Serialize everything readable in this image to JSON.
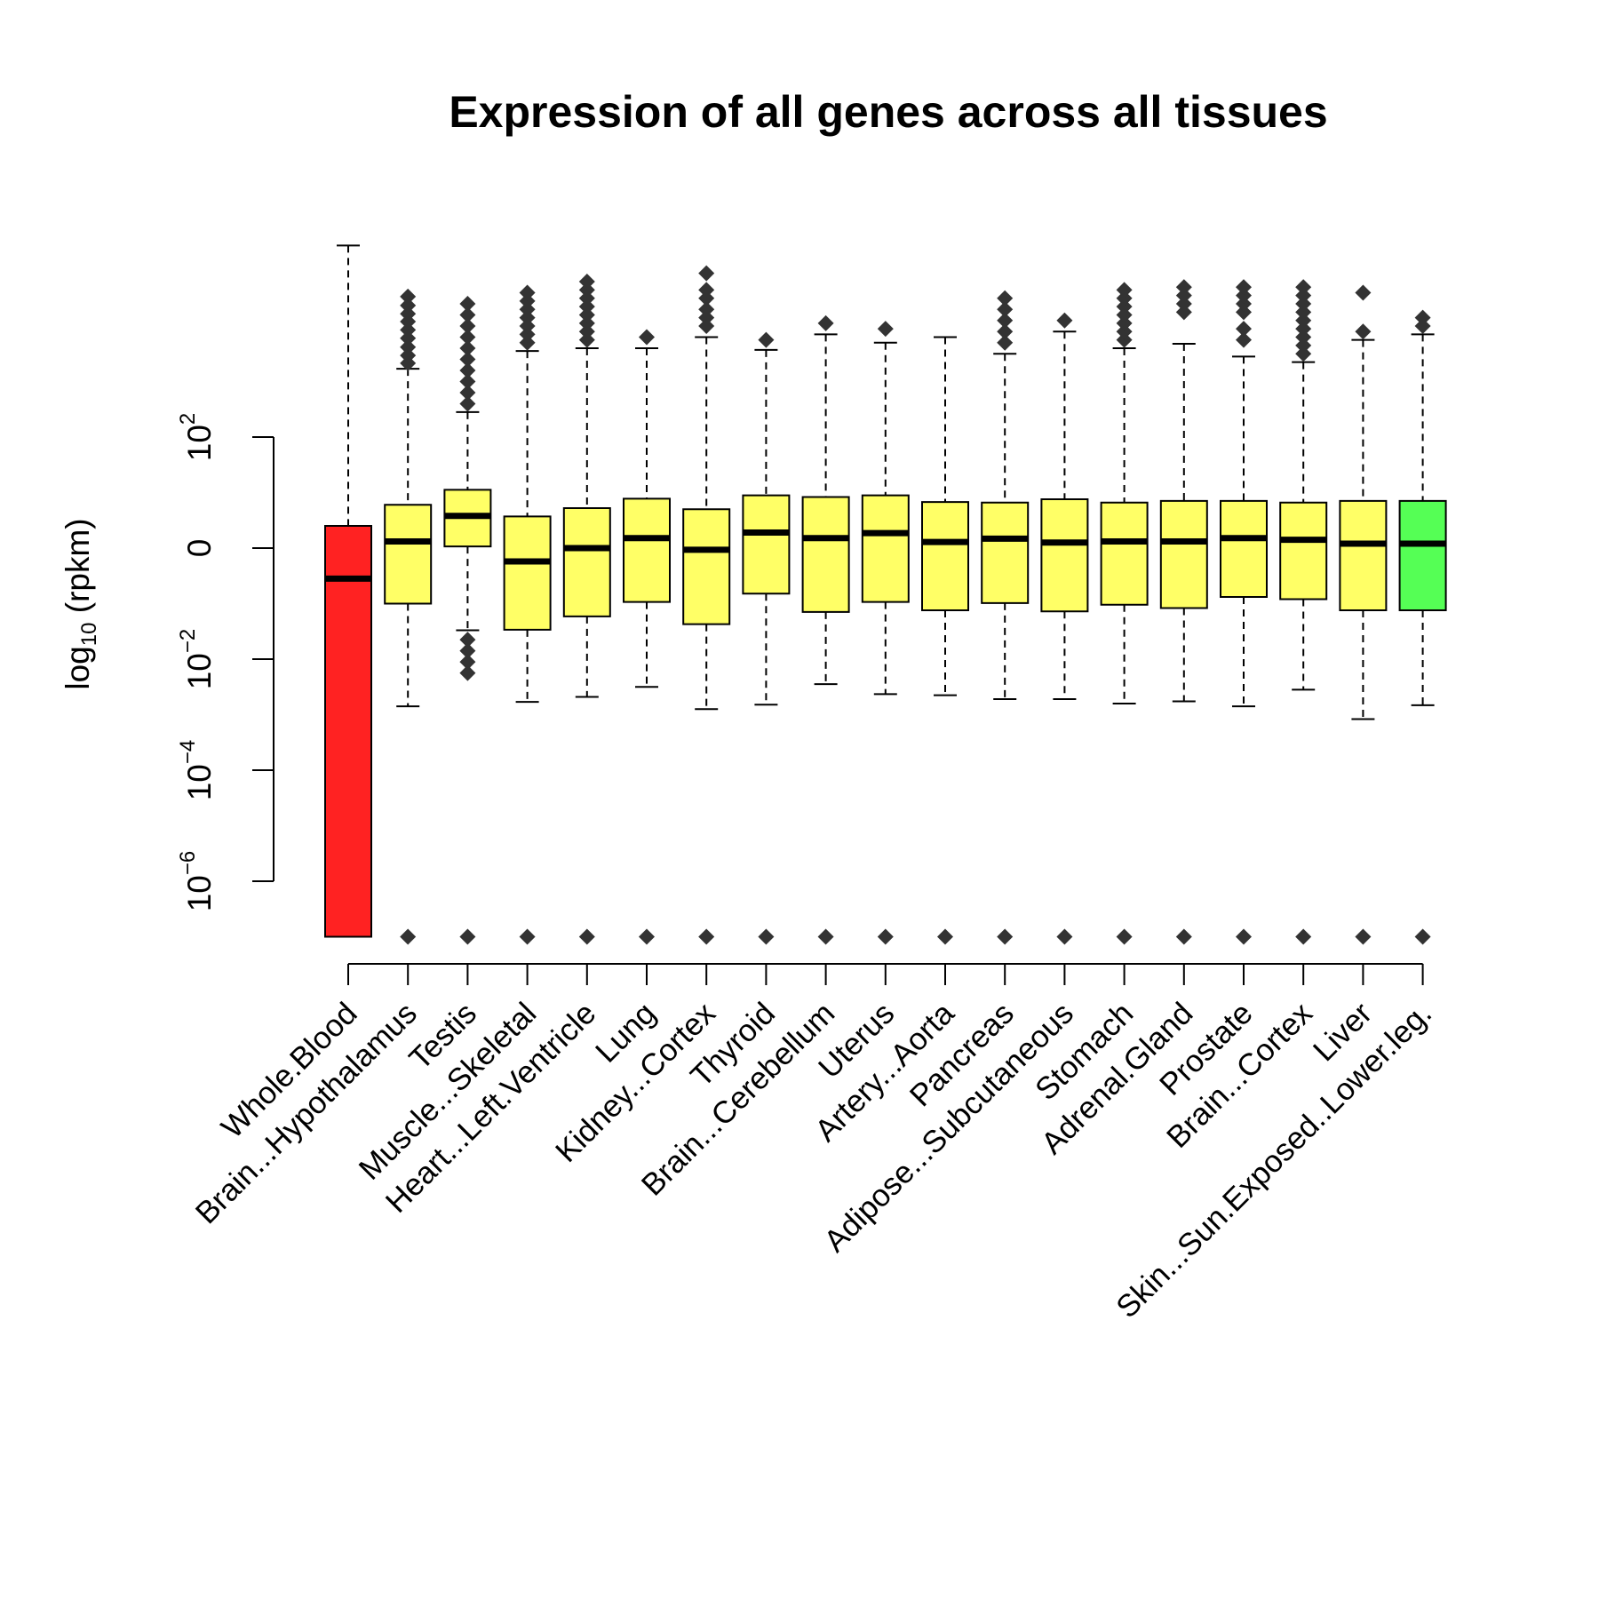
{
  "chart_data": {
    "type": "box",
    "title": "Expression of all genes across all tissues",
    "ylabel": {
      "base": "log",
      "subscript": "10",
      "rest": " (rpkm)"
    },
    "yscale": "log10",
    "ylim": [
      -7.1,
      5.9
    ],
    "yticks": [
      {
        "value": -6,
        "base": "10",
        "exp": "−6"
      },
      {
        "value": -4,
        "base": "10",
        "exp": "−4"
      },
      {
        "value": -2,
        "base": "10",
        "exp": "−2"
      },
      {
        "value": 0,
        "label": "0"
      },
      {
        "value": 2,
        "base": "10",
        "exp": "2"
      }
    ],
    "colors": {
      "highlight_low": "#ff2222",
      "default": "#ffff66",
      "highlight_high": "#55ff55",
      "outlier": "#333333"
    },
    "boxes": [
      {
        "category": "Whole.Blood",
        "color": "#ff2222",
        "lower_whisker": -7.0,
        "q1": -7.0,
        "median": -0.55,
        "q3": 0.4,
        "upper_whisker": 5.45,
        "outliers": []
      },
      {
        "category": "Brain...Hypothalamus",
        "color": "#ffff66",
        "lower_whisker": -2.85,
        "q1": -1.0,
        "median": 0.12,
        "q3": 0.78,
        "upper_whisker": 3.23,
        "outliers": [
          3.33,
          3.47,
          3.62,
          3.78,
          3.93,
          4.08,
          4.22,
          4.37,
          4.53,
          -7.0
        ]
      },
      {
        "category": "Testis",
        "color": "#ffff66",
        "lower_whisker": -1.48,
        "q1": 0.03,
        "median": 0.58,
        "q3": 1.05,
        "upper_whisker": 2.45,
        "outliers": [
          2.6,
          2.8,
          3.0,
          3.2,
          3.4,
          3.6,
          3.8,
          4.0,
          4.2,
          4.4,
          -1.65,
          -1.85,
          -2.05,
          -2.25,
          -7.0
        ]
      },
      {
        "category": "Muscle...Skeletal",
        "color": "#ffff66",
        "lower_whisker": -2.77,
        "q1": -1.47,
        "median": -0.24,
        "q3": 0.57,
        "upper_whisker": 3.55,
        "outliers": [
          3.7,
          3.85,
          4.0,
          4.15,
          4.3,
          4.45,
          4.6,
          -7.0
        ]
      },
      {
        "category": "Heart...Left.Ventricle",
        "color": "#ffff66",
        "lower_whisker": -2.68,
        "q1": -1.23,
        "median": 0.0,
        "q3": 0.72,
        "upper_whisker": 3.6,
        "outliers": [
          3.75,
          3.9,
          4.05,
          4.2,
          4.35,
          4.5,
          4.65,
          4.8,
          -7.0
        ]
      },
      {
        "category": "Lung",
        "color": "#ffff66",
        "lower_whisker": -2.5,
        "q1": -0.97,
        "median": 0.18,
        "q3": 0.89,
        "upper_whisker": 3.6,
        "outliers": [
          3.8,
          -7.0
        ]
      },
      {
        "category": "Kidney...Cortex",
        "color": "#ffff66",
        "lower_whisker": -2.9,
        "q1": -1.37,
        "median": -0.03,
        "q3": 0.7,
        "upper_whisker": 3.8,
        "outliers": [
          4.0,
          4.15,
          4.3,
          4.5,
          4.65,
          4.95,
          -7.0
        ]
      },
      {
        "category": "Thyroid",
        "color": "#ffff66",
        "lower_whisker": -2.82,
        "q1": -0.82,
        "median": 0.28,
        "q3": 0.95,
        "upper_whisker": 3.57,
        "outliers": [
          3.75,
          -7.0
        ]
      },
      {
        "category": "Brain...Cerebellum",
        "color": "#ffff66",
        "lower_whisker": -2.45,
        "q1": -1.15,
        "median": 0.18,
        "q3": 0.92,
        "upper_whisker": 3.85,
        "outliers": [
          4.05,
          -7.0
        ]
      },
      {
        "category": "Uterus",
        "color": "#ffff66",
        "lower_whisker": -2.63,
        "q1": -0.97,
        "median": 0.27,
        "q3": 0.95,
        "upper_whisker": 3.7,
        "outliers": [
          3.95,
          -7.0
        ]
      },
      {
        "category": "Artery...Aorta",
        "color": "#ffff66",
        "lower_whisker": -2.65,
        "q1": -1.12,
        "median": 0.11,
        "q3": 0.83,
        "upper_whisker": 3.8,
        "outliers": [
          -7.0
        ]
      },
      {
        "category": "Pancreas",
        "color": "#ffff66",
        "lower_whisker": -2.72,
        "q1": -0.99,
        "median": 0.17,
        "q3": 0.82,
        "upper_whisker": 3.5,
        "outliers": [
          3.7,
          3.9,
          4.1,
          4.3,
          4.5,
          -7.0
        ]
      },
      {
        "category": "Adipose...Subcutaneous",
        "color": "#ffff66",
        "lower_whisker": -2.72,
        "q1": -1.14,
        "median": 0.1,
        "q3": 0.88,
        "upper_whisker": 3.9,
        "outliers": [
          4.1,
          -7.0
        ]
      },
      {
        "category": "Stomach",
        "color": "#ffff66",
        "lower_whisker": -2.8,
        "q1": -1.02,
        "median": 0.12,
        "q3": 0.82,
        "upper_whisker": 3.6,
        "outliers": [
          3.75,
          3.9,
          4.05,
          4.2,
          4.35,
          4.5,
          4.65,
          -7.0
        ]
      },
      {
        "category": "Adrenal.Gland",
        "color": "#ffff66",
        "lower_whisker": -2.76,
        "q1": -1.08,
        "median": 0.12,
        "q3": 0.85,
        "upper_whisker": 3.68,
        "outliers": [
          4.25,
          4.4,
          4.55,
          4.7,
          -7.0
        ]
      },
      {
        "category": "Prostate",
        "color": "#ffff66",
        "lower_whisker": -2.85,
        "q1": -0.88,
        "median": 0.18,
        "q3": 0.85,
        "upper_whisker": 3.45,
        "outliers": [
          3.75,
          3.95,
          4.25,
          4.4,
          4.55,
          4.7,
          -7.0
        ]
      },
      {
        "category": "Brain...Cortex",
        "color": "#ffff66",
        "lower_whisker": -2.55,
        "q1": -0.92,
        "median": 0.15,
        "q3": 0.82,
        "upper_whisker": 3.35,
        "outliers": [
          3.5,
          3.65,
          3.8,
          3.95,
          4.1,
          4.25,
          4.4,
          4.55,
          4.7,
          -7.0
        ]
      },
      {
        "category": "Liver",
        "color": "#ffff66",
        "lower_whisker": -3.08,
        "q1": -1.12,
        "median": 0.08,
        "q3": 0.85,
        "upper_whisker": 3.75,
        "outliers": [
          3.9,
          4.6,
          -7.0
        ]
      },
      {
        "category": "Skin...Sun.Exposed..Lower.leg.",
        "color": "#55ff55",
        "lower_whisker": -2.83,
        "q1": -1.12,
        "median": 0.08,
        "q3": 0.85,
        "upper_whisker": 3.85,
        "outliers": [
          4.0,
          4.15,
          -7.0
        ]
      }
    ]
  }
}
